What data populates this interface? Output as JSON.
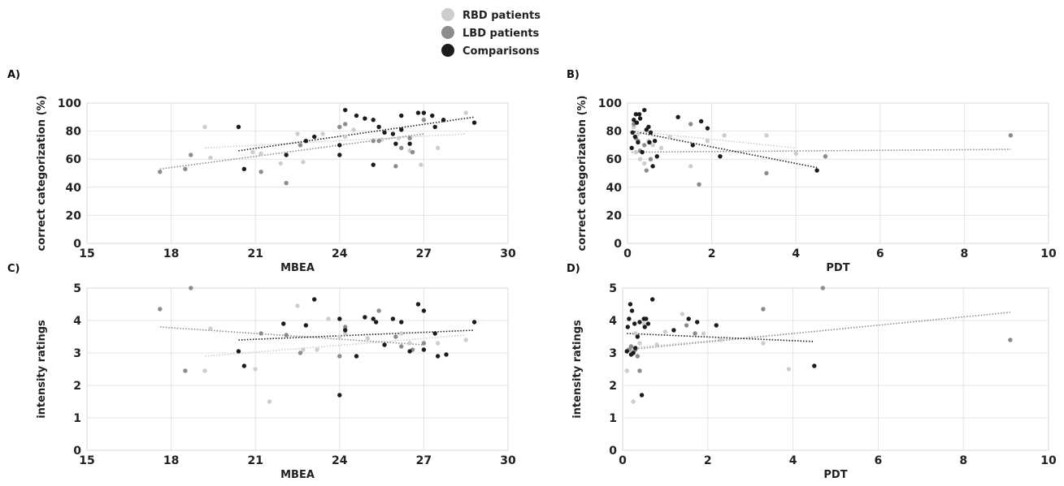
{
  "legend": {
    "items": [
      {
        "label": "RBD patients",
        "color": "#cdcdcd"
      },
      {
        "label": "LBD patients",
        "color": "#8c8c8c"
      },
      {
        "label": "Comparisons",
        "color": "#1c1c1c"
      }
    ]
  },
  "chart_data": [
    {
      "panel": "A)",
      "type": "scatter",
      "xlabel": "MBEA",
      "ylabel": "correct categorization (%)",
      "xlim": [
        15,
        30
      ],
      "ylim": [
        0,
        100
      ],
      "xticks": [
        "15",
        "18",
        "21",
        "24",
        "27",
        "30"
      ],
      "yticks": [
        "0",
        "20",
        "40",
        "60",
        "80",
        "100"
      ],
      "grid": true,
      "series": [
        {
          "name": "RBD patients",
          "color": "#cdcdcd",
          "points": [
            [
              19.2,
              83
            ],
            [
              19.4,
              61
            ],
            [
              20.9,
              65
            ],
            [
              21.2,
              64
            ],
            [
              21.9,
              57
            ],
            [
              22.5,
              78
            ],
            [
              22.7,
              58
            ],
            [
              23.4,
              78
            ],
            [
              24.2,
              76
            ],
            [
              24.5,
              81
            ],
            [
              25.5,
              74
            ],
            [
              26.1,
              75
            ],
            [
              26.5,
              66
            ],
            [
              26.9,
              56
            ],
            [
              27.5,
              68
            ],
            [
              28.5,
              93
            ]
          ],
          "trend": [
            [
              19.2,
              68
            ],
            [
              28.5,
              78
            ]
          ]
        },
        {
          "name": "LBD patients",
          "color": "#8c8c8c",
          "points": [
            [
              17.6,
              51
            ],
            [
              18.5,
              53
            ],
            [
              18.7,
              63
            ],
            [
              21.2,
              51
            ],
            [
              22.1,
              43
            ],
            [
              22.6,
              70
            ],
            [
              24.0,
              83
            ],
            [
              24.2,
              85
            ],
            [
              25.2,
              73
            ],
            [
              25.4,
              73
            ],
            [
              26.0,
              55
            ],
            [
              26.2,
              68
            ],
            [
              26.5,
              75
            ],
            [
              26.6,
              65
            ],
            [
              27.0,
              88
            ]
          ],
          "trend": [
            [
              17.6,
              53
            ],
            [
              27.0,
              78
            ]
          ]
        },
        {
          "name": "Comparisons",
          "color": "#1c1c1c",
          "points": [
            [
              20.4,
              83
            ],
            [
              20.6,
              53
            ],
            [
              22.1,
              63
            ],
            [
              22.8,
              73
            ],
            [
              23.1,
              76
            ],
            [
              24.0,
              63
            ],
            [
              24.0,
              70
            ],
            [
              24.2,
              95
            ],
            [
              24.6,
              91
            ],
            [
              24.9,
              89
            ],
            [
              25.2,
              88
            ],
            [
              25.2,
              56
            ],
            [
              25.4,
              83
            ],
            [
              25.6,
              79
            ],
            [
              25.9,
              78
            ],
            [
              26.0,
              71
            ],
            [
              26.2,
              81
            ],
            [
              26.2,
              91
            ],
            [
              26.5,
              71
            ],
            [
              26.8,
              93
            ],
            [
              27.0,
              93
            ],
            [
              27.3,
              91
            ],
            [
              27.4,
              83
            ],
            [
              27.7,
              88
            ],
            [
              28.8,
              86
            ]
          ],
          "trend": [
            [
              20.4,
              66
            ],
            [
              28.8,
              90
            ]
          ]
        }
      ]
    },
    {
      "panel": "B)",
      "type": "scatter",
      "xlabel": "PDT",
      "ylabel": "correct categorization (%)",
      "xlim": [
        0,
        10
      ],
      "ylim": [
        0,
        100
      ],
      "xticks": [
        "0",
        "2",
        "4",
        "6",
        "8",
        "10"
      ],
      "yticks": [
        "0",
        "20",
        "40",
        "60",
        "80",
        "100"
      ],
      "grid": true,
      "series": [
        {
          "name": "RBD patients",
          "color": "#cdcdcd",
          "points": [
            [
              0.15,
              83
            ],
            [
              0.2,
              65
            ],
            [
              0.25,
              78
            ],
            [
              0.3,
              60
            ],
            [
              0.4,
              57
            ],
            [
              0.5,
              73
            ],
            [
              0.6,
              70
            ],
            [
              0.8,
              68
            ],
            [
              1.0,
              76
            ],
            [
              1.5,
              55
            ],
            [
              1.9,
              73
            ],
            [
              2.3,
              77
            ],
            [
              3.3,
              77
            ],
            [
              4.0,
              64
            ]
          ],
          "trend": [
            [
              0.1,
              80
            ],
            [
              4.0,
              68
            ]
          ]
        },
        {
          "name": "LBD patients",
          "color": "#8c8c8c",
          "points": [
            [
              0.15,
              85
            ],
            [
              0.2,
              75
            ],
            [
              0.25,
              73
            ],
            [
              0.3,
              66
            ],
            [
              0.4,
              70
            ],
            [
              0.45,
              52
            ],
            [
              0.55,
              60
            ],
            [
              1.5,
              85
            ],
            [
              1.7,
              42
            ],
            [
              3.3,
              50
            ],
            [
              4.7,
              62
            ],
            [
              9.1,
              77
            ]
          ],
          "trend": [
            [
              0.1,
              65
            ],
            [
              9.1,
              67
            ]
          ]
        },
        {
          "name": "Comparisons",
          "color": "#1c1c1c",
          "points": [
            [
              0.1,
              68
            ],
            [
              0.12,
              79
            ],
            [
              0.15,
              88
            ],
            [
              0.18,
              76
            ],
            [
              0.2,
              92
            ],
            [
              0.22,
              86
            ],
            [
              0.25,
              72
            ],
            [
              0.28,
              92
            ],
            [
              0.3,
              89
            ],
            [
              0.35,
              65
            ],
            [
              0.4,
              95
            ],
            [
              0.45,
              81
            ],
            [
              0.5,
              83
            ],
            [
              0.52,
              72
            ],
            [
              0.55,
              79
            ],
            [
              0.6,
              55
            ],
            [
              0.65,
              73
            ],
            [
              0.7,
              62
            ],
            [
              1.2,
              90
            ],
            [
              1.55,
              70
            ],
            [
              1.75,
              87
            ],
            [
              1.9,
              82
            ],
            [
              2.2,
              62
            ],
            [
              4.5,
              52
            ]
          ],
          "trend": [
            [
              0.1,
              80
            ],
            [
              4.5,
              54
            ]
          ]
        }
      ]
    },
    {
      "panel": "C)",
      "type": "scatter",
      "xlabel": "MBEA",
      "ylabel": "intensity ratings",
      "xlim": [
        15,
        30
      ],
      "ylim": [
        0,
        5
      ],
      "xticks": [
        "15",
        "18",
        "21",
        "24",
        "27",
        "30"
      ],
      "yticks": [
        "0",
        "1",
        "2",
        "3",
        "4",
        "5"
      ],
      "grid": true,
      "series": [
        {
          "name": "RBD patients",
          "color": "#cdcdcd",
          "points": [
            [
              19.2,
              2.45
            ],
            [
              19.4,
              3.75
            ],
            [
              21.0,
              2.5
            ],
            [
              21.5,
              1.5
            ],
            [
              22.5,
              4.45
            ],
            [
              22.7,
              3.1
            ],
            [
              23.2,
              3.1
            ],
            [
              23.6,
              4.05
            ],
            [
              24.0,
              3.5
            ],
            [
              24.2,
              3.6
            ],
            [
              25.0,
              3.45
            ],
            [
              26.2,
              3.6
            ],
            [
              26.5,
              3.3
            ],
            [
              27.5,
              3.3
            ],
            [
              28.5,
              3.4
            ]
          ],
          "trend": [
            [
              19.2,
              2.9
            ],
            [
              28.5,
              3.55
            ]
          ]
        },
        {
          "name": "LBD patients",
          "color": "#8c8c8c",
          "points": [
            [
              17.6,
              4.35
            ],
            [
              18.5,
              2.45
            ],
            [
              18.7,
              5.0
            ],
            [
              21.2,
              3.6
            ],
            [
              22.1,
              3.55
            ],
            [
              22.6,
              3.0
            ],
            [
              24.0,
              2.9
            ],
            [
              24.2,
              3.8
            ],
            [
              25.4,
              4.3
            ],
            [
              26.0,
              3.5
            ],
            [
              26.2,
              3.2
            ],
            [
              26.6,
              3.1
            ],
            [
              27.0,
              3.3
            ]
          ],
          "trend": [
            [
              17.6,
              3.8
            ],
            [
              27.0,
              3.25
            ]
          ]
        },
        {
          "name": "Comparisons",
          "color": "#1c1c1c",
          "points": [
            [
              20.4,
              3.05
            ],
            [
              20.6,
              2.6
            ],
            [
              22.0,
              3.9
            ],
            [
              22.8,
              3.85
            ],
            [
              23.1,
              4.65
            ],
            [
              24.0,
              4.05
            ],
            [
              24.0,
              1.7
            ],
            [
              24.2,
              3.7
            ],
            [
              24.6,
              2.9
            ],
            [
              24.9,
              4.1
            ],
            [
              25.2,
              4.05
            ],
            [
              25.3,
              3.95
            ],
            [
              25.6,
              3.25
            ],
            [
              25.9,
              4.05
            ],
            [
              26.2,
              3.95
            ],
            [
              26.5,
              3.05
            ],
            [
              26.8,
              4.5
            ],
            [
              27.0,
              4.3
            ],
            [
              27.0,
              3.1
            ],
            [
              27.4,
              3.6
            ],
            [
              27.5,
              2.9
            ],
            [
              27.8,
              2.95
            ],
            [
              28.8,
              3.95
            ]
          ],
          "trend": [
            [
              20.4,
              3.4
            ],
            [
              28.8,
              3.7
            ]
          ]
        }
      ]
    },
    {
      "panel": "D)",
      "type": "scatter",
      "xlabel": "PDT",
      "ylabel": "intensity ratings",
      "xlim": [
        0,
        10
      ],
      "ylim": [
        0,
        5
      ],
      "xticks": [
        "0",
        "2",
        "4",
        "6",
        "8",
        "10"
      ],
      "yticks": [
        "0",
        "1",
        "2",
        "3",
        "4",
        "5"
      ],
      "grid": true,
      "series": [
        {
          "name": "RBD patients",
          "color": "#cdcdcd",
          "points": [
            [
              0.1,
              2.45
            ],
            [
              0.2,
              3.1
            ],
            [
              0.25,
              1.5
            ],
            [
              0.3,
              3.6
            ],
            [
              0.4,
              3.3
            ],
            [
              0.5,
              3.9
            ],
            [
              0.8,
              3.25
            ],
            [
              1.0,
              3.65
            ],
            [
              1.4,
              4.2
            ],
            [
              1.9,
              3.6
            ],
            [
              2.3,
              3.4
            ],
            [
              3.3,
              3.3
            ],
            [
              3.9,
              2.5
            ]
          ],
          "trend": [
            [
              0.1,
              3.15
            ],
            [
              4.0,
              3.6
            ]
          ]
        },
        {
          "name": "LBD patients",
          "color": "#8c8c8c",
          "points": [
            [
              0.15,
              3.1
            ],
            [
              0.2,
              3.2
            ],
            [
              0.25,
              3.0
            ],
            [
              0.3,
              3.1
            ],
            [
              0.35,
              2.9
            ],
            [
              0.4,
              2.45
            ],
            [
              1.5,
              3.85
            ],
            [
              1.7,
              3.6
            ],
            [
              3.3,
              4.35
            ],
            [
              4.7,
              5.0
            ],
            [
              9.1,
              3.4
            ]
          ],
          "trend": [
            [
              0.1,
              3.1
            ],
            [
              9.1,
              4.25
            ]
          ]
        },
        {
          "name": "Comparisons",
          "color": "#1c1c1c",
          "points": [
            [
              0.1,
              3.05
            ],
            [
              0.12,
              3.8
            ],
            [
              0.15,
              4.05
            ],
            [
              0.18,
              4.5
            ],
            [
              0.2,
              2.95
            ],
            [
              0.22,
              4.3
            ],
            [
              0.25,
              3.0
            ],
            [
              0.28,
              3.9
            ],
            [
              0.3,
              3.15
            ],
            [
              0.35,
              3.5
            ],
            [
              0.4,
              3.95
            ],
            [
              0.45,
              1.7
            ],
            [
              0.5,
              4.05
            ],
            [
              0.52,
              3.8
            ],
            [
              0.55,
              4.05
            ],
            [
              0.6,
              3.9
            ],
            [
              0.7,
              4.65
            ],
            [
              1.2,
              3.7
            ],
            [
              1.55,
              4.05
            ],
            [
              1.75,
              3.95
            ],
            [
              2.2,
              3.85
            ],
            [
              4.5,
              2.6
            ]
          ],
          "trend": [
            [
              0.1,
              3.6
            ],
            [
              4.5,
              3.35
            ]
          ]
        }
      ]
    }
  ]
}
